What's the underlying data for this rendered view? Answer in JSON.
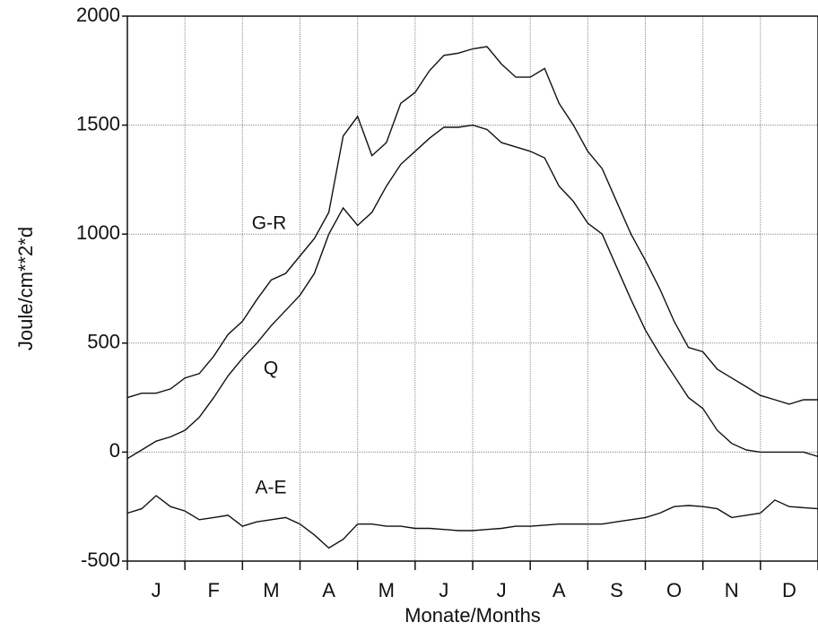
{
  "chart_data": {
    "type": "line",
    "ylabel": "Joule/cm**2*d",
    "xlabel": "Monate/Months",
    "x": [
      0,
      0.25,
      0.5,
      0.75,
      1,
      1.25,
      1.5,
      1.75,
      2,
      2.25,
      2.5,
      2.75,
      3,
      3.25,
      3.5,
      3.75,
      4,
      4.25,
      4.5,
      4.75,
      5,
      5.25,
      5.5,
      5.75,
      6,
      6.25,
      6.5,
      6.75,
      7,
      7.25,
      7.5,
      7.75,
      8,
      8.25,
      8.5,
      8.75,
      9,
      9.25,
      9.5,
      9.75,
      10,
      10.25,
      10.5,
      10.75,
      11,
      11.25,
      11.5,
      11.75,
      12
    ],
    "xlim": [
      0,
      12
    ],
    "xticks": [
      {
        "value": 0.5,
        "label": "J"
      },
      {
        "value": 1.5,
        "label": "F"
      },
      {
        "value": 2.5,
        "label": "M"
      },
      {
        "value": 3.5,
        "label": "A"
      },
      {
        "value": 4.5,
        "label": "M"
      },
      {
        "value": 5.5,
        "label": "J"
      },
      {
        "value": 6.5,
        "label": "J"
      },
      {
        "value": 7.5,
        "label": "A"
      },
      {
        "value": 8.5,
        "label": "S"
      },
      {
        "value": 9.5,
        "label": "O"
      },
      {
        "value": 10.5,
        "label": "N"
      },
      {
        "value": 11.5,
        "label": "D"
      }
    ],
    "ylim": [
      -500,
      2000
    ],
    "yticks": [
      -500,
      0,
      500,
      1000,
      1500,
      2000
    ],
    "grid": true,
    "series": [
      {
        "name": "G-R",
        "color": "#111111",
        "values": [
          250,
          270,
          270,
          290,
          340,
          360,
          440,
          540,
          600,
          700,
          790,
          820,
          900,
          980,
          1100,
          1450,
          1540,
          1360,
          1420,
          1600,
          1650,
          1750,
          1820,
          1830,
          1850,
          1860,
          1780,
          1720,
          1720,
          1760,
          1600,
          1500,
          1380,
          1300,
          1150,
          1000,
          880,
          750,
          600,
          480,
          460,
          380,
          340,
          300,
          260,
          240,
          220,
          240,
          240
        ]
      },
      {
        "name": "Q",
        "color": "#111111",
        "values": [
          -30,
          10,
          50,
          70,
          100,
          160,
          250,
          350,
          430,
          500,
          580,
          650,
          720,
          820,
          1000,
          1120,
          1040,
          1100,
          1220,
          1320,
          1380,
          1440,
          1490,
          1490,
          1500,
          1480,
          1420,
          1400,
          1380,
          1350,
          1220,
          1150,
          1050,
          1000,
          850,
          700,
          560,
          450,
          350,
          250,
          200,
          100,
          40,
          10,
          0,
          0,
          0,
          0,
          -20
        ]
      },
      {
        "name": "A-E",
        "color": "#111111",
        "values": [
          -280,
          -260,
          -200,
          -250,
          -270,
          -310,
          -300,
          -290,
          -340,
          -320,
          -310,
          -300,
          -330,
          -380,
          -440,
          -400,
          -330,
          -330,
          -340,
          -340,
          -350,
          -350,
          -355,
          -360,
          -360,
          -355,
          -350,
          -340,
          -340,
          -335,
          -330,
          -330,
          -330,
          -330,
          -320,
          -310,
          -300,
          -280,
          -250,
          -245,
          -250,
          -260,
          -300,
          -290,
          -280,
          -220,
          -250,
          -255,
          -260
        ]
      }
    ]
  }
}
